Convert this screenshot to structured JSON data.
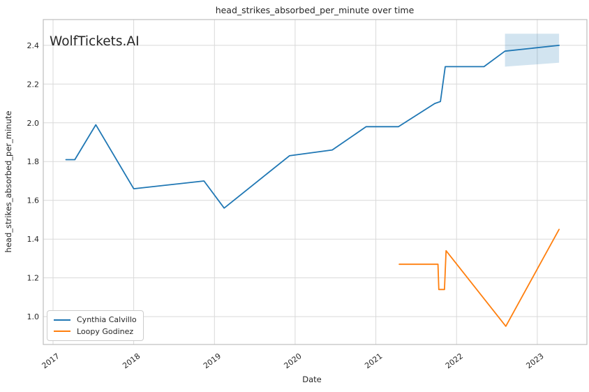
{
  "watermark": "WolfTickets.AI",
  "colors": {
    "series_blue": "#1f77b4",
    "series_orange": "#ff7f0e",
    "band_fill": "#1f77b4",
    "grid": "#d9d9d9",
    "spine": "#bfbfbf",
    "text": "#262626",
    "watermark": "#cccccc",
    "background": "#ffffff"
  },
  "chart_data": {
    "type": "line",
    "title": "head_strikes_absorbed_per_minute over time",
    "xlabel": "Date",
    "ylabel": "head_strikes_absorbed_per_minute",
    "xlim": [
      2016.879,
      2023.615
    ],
    "ylim": [
      0.856,
      2.533
    ],
    "grid": true,
    "legend_position": "lower left",
    "x_ticks": {
      "values": [
        2017,
        2018,
        2019,
        2020,
        2021,
        2022,
        2023
      ],
      "labels": [
        "2017",
        "2018",
        "2019",
        "2020",
        "2021",
        "2022",
        "2023"
      ],
      "rotation_deg": -37
    },
    "y_ticks": {
      "values": [
        1.0,
        1.2,
        1.4,
        1.6,
        1.8,
        2.0,
        2.2,
        2.4
      ],
      "labels": [
        "1.0",
        "1.2",
        "1.4",
        "1.6",
        "1.8",
        "2.0",
        "2.2",
        "2.4"
      ]
    },
    "series": [
      {
        "name": "Cynthia Calvillo",
        "color": "#1f77b4",
        "x": [
          2017.16,
          2017.27,
          2017.53,
          2018.0,
          2018.87,
          2019.12,
          2019.93,
          2020.46,
          2020.88,
          2021.28,
          2021.73,
          2021.8,
          2021.86,
          2022.34,
          2022.6,
          2023.27
        ],
        "y": [
          1.81,
          1.81,
          1.99,
          1.66,
          1.7,
          1.56,
          1.83,
          1.86,
          1.98,
          1.98,
          2.1,
          2.11,
          2.29,
          2.29,
          2.37,
          2.4
        ]
      },
      {
        "name": "Loopy Godinez",
        "color": "#ff7f0e",
        "x": [
          2021.29,
          2021.77,
          2021.78,
          2021.85,
          2021.87,
          2022.61,
          2023.27
        ],
        "y": [
          1.27,
          1.27,
          1.14,
          1.14,
          1.34,
          0.95,
          1.45
        ]
      }
    ],
    "band": {
      "series": "Cynthia Calvillo",
      "x": [
        2022.6,
        2023.27
      ],
      "lower": [
        2.29,
        2.31
      ],
      "upper": [
        2.46,
        2.46
      ],
      "opacity": 0.2
    }
  }
}
